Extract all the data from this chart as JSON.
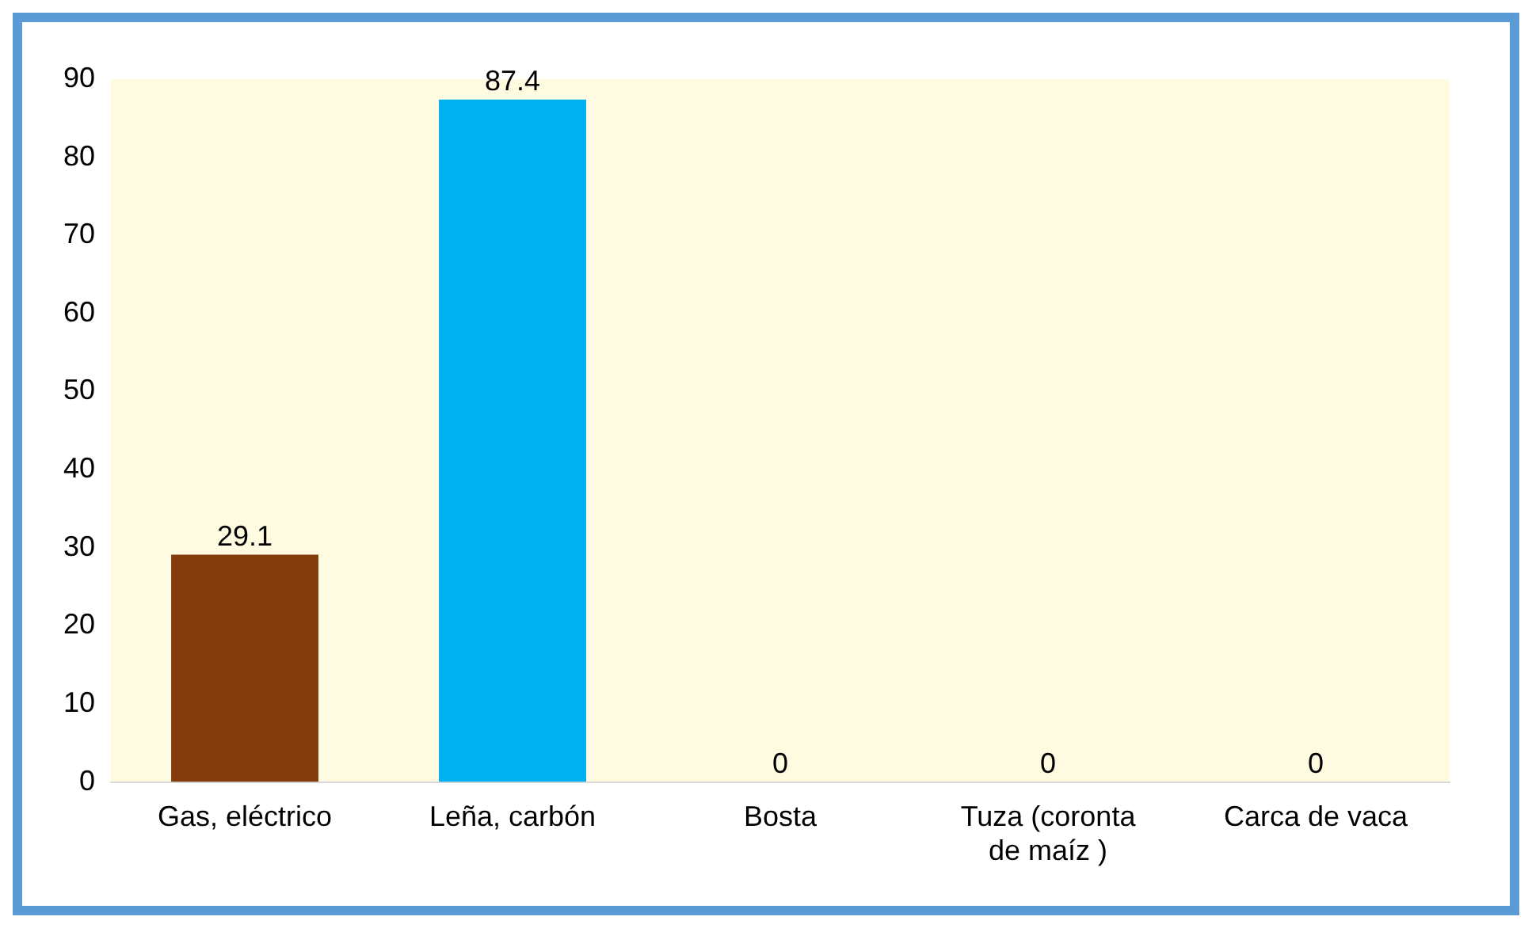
{
  "chart_data": {
    "type": "bar",
    "categories": [
      "Gas, eléctrico",
      "Leña, carbón",
      "Bosta",
      "Tuza (coronta de maíz )",
      "Carca de vaca"
    ],
    "values": [
      29.1,
      87.4,
      0,
      0,
      0
    ],
    "colors": [
      "#843c0c",
      "#00b0f0",
      "#70ad47",
      "#000000",
      "#808080"
    ],
    "ylim": [
      0,
      90
    ],
    "yticks": [
      0,
      10,
      20,
      30,
      40,
      50,
      60,
      70,
      80,
      90
    ],
    "data_labels": true,
    "grid": false,
    "legend": false
  }
}
